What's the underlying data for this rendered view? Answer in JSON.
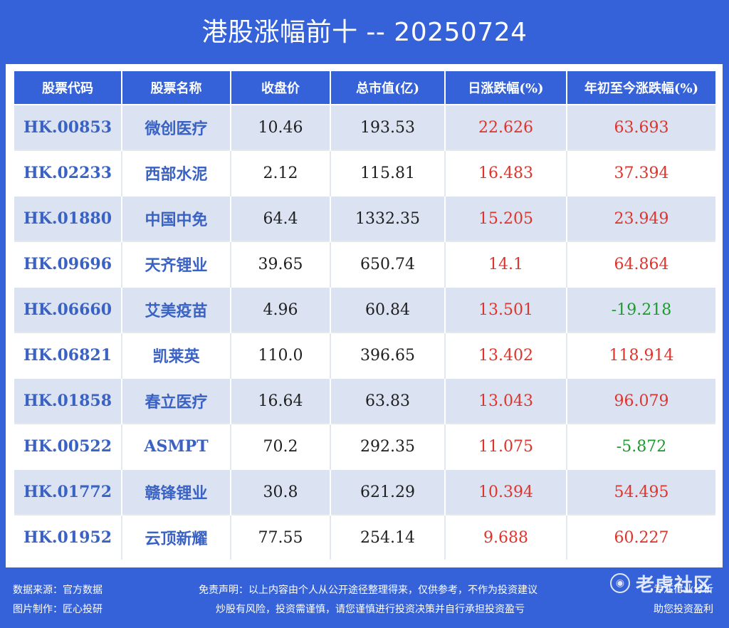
{
  "title": "港股涨幅前十 -- 20250724",
  "table": {
    "headers": [
      "股票代码",
      "股票名称",
      "收盘价",
      "总市值(亿)",
      "日涨跌幅(%)",
      "年初至今涨跌幅(%)"
    ],
    "rows": [
      {
        "code": "HK.00853",
        "name": "微创医疗",
        "close": "10.46",
        "market_cap": "193.53",
        "day_change": "22.626",
        "ytd_change": "63.693"
      },
      {
        "code": "HK.02233",
        "name": "西部水泥",
        "close": "2.12",
        "market_cap": "115.81",
        "day_change": "16.483",
        "ytd_change": "37.394"
      },
      {
        "code": "HK.01880",
        "name": "中国中免",
        "close": "64.4",
        "market_cap": "1332.35",
        "day_change": "15.205",
        "ytd_change": "23.949"
      },
      {
        "code": "HK.09696",
        "name": "天齐锂业",
        "close": "39.65",
        "market_cap": "650.74",
        "day_change": "14.1",
        "ytd_change": "64.864"
      },
      {
        "code": "HK.06660",
        "name": "艾美疫苗",
        "close": "4.96",
        "market_cap": "60.84",
        "day_change": "13.501",
        "ytd_change": "-19.218"
      },
      {
        "code": "HK.06821",
        "name": "凯莱英",
        "close": "110.0",
        "market_cap": "396.65",
        "day_change": "13.402",
        "ytd_change": "118.914"
      },
      {
        "code": "HK.01858",
        "name": "春立医疗",
        "close": "16.64",
        "market_cap": "63.83",
        "day_change": "13.043",
        "ytd_change": "96.079"
      },
      {
        "code": "HK.00522",
        "name": "ASMPT",
        "close": "70.2",
        "market_cap": "292.35",
        "day_change": "11.075",
        "ytd_change": "-5.872"
      },
      {
        "code": "HK.01772",
        "name": "赣锋锂业",
        "close": "30.8",
        "market_cap": "621.29",
        "day_change": "10.394",
        "ytd_change": "54.495"
      },
      {
        "code": "HK.01952",
        "name": "云顶新耀",
        "close": "77.55",
        "market_cap": "254.14",
        "day_change": "9.688",
        "ytd_change": "60.227"
      }
    ]
  },
  "footer": {
    "source": "数据来源：官方数据",
    "maker": "图片制作：匠心投研",
    "disclaimer_1": "免责声明：以上内容由个人从公开途径整理得来，仅供参考，不作为投资建议",
    "disclaimer_2": "炒股有风险，投资需谨慎，请您谨慎进行投资决策并自行承担投资盈亏",
    "right_1": "专注行业分析",
    "right_2": "助您投资盈利"
  },
  "watermark": {
    "text": "老虎社区",
    "icon": "tiger-logo-icon"
  },
  "colors": {
    "background": "#3562d8",
    "header": "#3562d8",
    "row_alt": "#dbe3f2",
    "up": "#e0332b",
    "down": "#1c9a2e",
    "code_text": "#3a62c4"
  }
}
